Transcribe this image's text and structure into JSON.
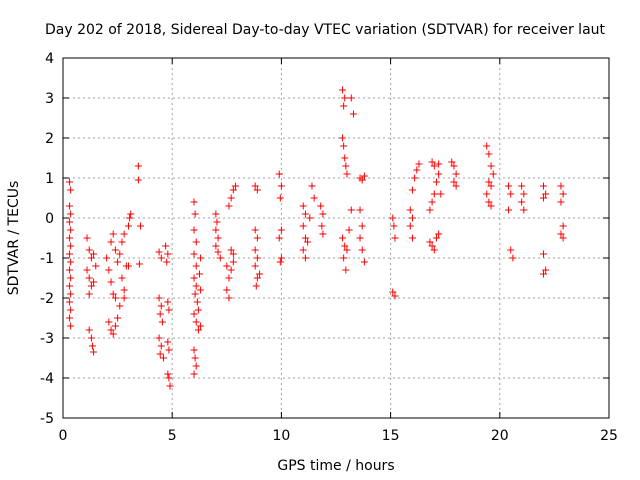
{
  "chart_data": {
    "type": "scatter",
    "title": "Day 202 of 2018, Sidereal Day-to-day VTEC variation (SDTVAR) for receiver laut",
    "xlabel": "GPS time / hours",
    "ylabel": "SDTVAR / TECUs",
    "xlim": [
      0,
      25
    ],
    "ylim": [
      -5,
      4
    ],
    "xticks": [
      "0",
      "5",
      "10",
      "15",
      "20",
      "25"
    ],
    "yticks": [
      "-5",
      "-4",
      "-3",
      "-2",
      "-1",
      "0",
      "1",
      "2",
      "3",
      "4"
    ],
    "grid": true,
    "marker": "+",
    "color": "#ff0000",
    "series": [
      {
        "name": "SDTVAR",
        "points": [
          [
            0.3,
            0.9
          ],
          [
            0.35,
            0.7
          ],
          [
            0.3,
            0.3
          ],
          [
            0.35,
            0.1
          ],
          [
            0.3,
            -0.1
          ],
          [
            0.35,
            -0.3
          ],
          [
            0.3,
            -0.5
          ],
          [
            0.35,
            -0.7
          ],
          [
            0.3,
            -0.9
          ],
          [
            0.35,
            -1.1
          ],
          [
            0.3,
            -1.3
          ],
          [
            0.35,
            -1.5
          ],
          [
            0.3,
            -1.7
          ],
          [
            0.35,
            -1.9
          ],
          [
            0.3,
            -2.1
          ],
          [
            0.35,
            -2.3
          ],
          [
            0.3,
            -2.5
          ],
          [
            0.35,
            -2.7
          ],
          [
            1.1,
            -0.5
          ],
          [
            1.2,
            -0.8
          ],
          [
            1.3,
            -1.0
          ],
          [
            1.1,
            -1.3
          ],
          [
            1.2,
            -1.5
          ],
          [
            1.3,
            -1.7
          ],
          [
            1.2,
            -1.9
          ],
          [
            1.4,
            -1.6
          ],
          [
            1.5,
            -1.2
          ],
          [
            1.4,
            -0.9
          ],
          [
            1.2,
            -2.8
          ],
          [
            1.3,
            -3.0
          ],
          [
            1.35,
            -3.2
          ],
          [
            1.4,
            -3.35
          ],
          [
            2.0,
            -1.0
          ],
          [
            2.1,
            -1.3
          ],
          [
            2.2,
            -1.6
          ],
          [
            2.3,
            -1.9
          ],
          [
            2.4,
            -2.0
          ],
          [
            2.1,
            -2.6
          ],
          [
            2.2,
            -2.8
          ],
          [
            2.3,
            -2.9
          ],
          [
            2.4,
            -2.7
          ],
          [
            2.5,
            -2.5
          ],
          [
            2.6,
            -2.2
          ],
          [
            2.2,
            -0.6
          ],
          [
            2.3,
            -0.4
          ],
          [
            2.4,
            -0.8
          ],
          [
            2.5,
            -1.1
          ],
          [
            2.6,
            -0.9
          ],
          [
            2.7,
            -0.6
          ],
          [
            2.8,
            -0.4
          ],
          [
            2.7,
            -1.5
          ],
          [
            2.8,
            -1.8
          ],
          [
            2.9,
            -1.2
          ],
          [
            2.8,
            -2.0
          ],
          [
            3.0,
            -0.2
          ],
          [
            3.05,
            0.0
          ],
          [
            3.1,
            0.1
          ],
          [
            3.0,
            -1.2
          ],
          [
            3.45,
            1.3
          ],
          [
            3.45,
            0.95
          ],
          [
            3.55,
            -0.2
          ],
          [
            3.5,
            -1.15
          ],
          [
            4.4,
            -0.85
          ],
          [
            4.5,
            -1.0
          ],
          [
            4.4,
            -2.0
          ],
          [
            4.5,
            -2.2
          ],
          [
            4.45,
            -2.4
          ],
          [
            4.55,
            -2.6
          ],
          [
            4.4,
            -3.0
          ],
          [
            4.5,
            -3.2
          ],
          [
            4.45,
            -3.4
          ],
          [
            4.6,
            -3.5
          ],
          [
            4.7,
            -0.7
          ],
          [
            4.8,
            -0.9
          ],
          [
            4.75,
            -1.1
          ],
          [
            4.8,
            -2.1
          ],
          [
            4.85,
            -2.3
          ],
          [
            4.8,
            -3.1
          ],
          [
            4.85,
            -3.3
          ],
          [
            4.8,
            -3.9
          ],
          [
            4.85,
            -4.0
          ],
          [
            4.9,
            -4.2
          ],
          [
            6.0,
            0.4
          ],
          [
            6.05,
            0.1
          ],
          [
            6.0,
            -0.3
          ],
          [
            6.1,
            -0.6
          ],
          [
            6.0,
            -0.9
          ],
          [
            6.1,
            -1.2
          ],
          [
            6.0,
            -1.5
          ],
          [
            6.1,
            -1.7
          ],
          [
            6.05,
            -1.9
          ],
          [
            6.15,
            -2.1
          ],
          [
            6.0,
            -2.4
          ],
          [
            6.1,
            -2.6
          ],
          [
            6.2,
            -2.8
          ],
          [
            6.3,
            -2.7
          ],
          [
            6.2,
            -2.3
          ],
          [
            6.3,
            -1.8
          ],
          [
            6.25,
            -1.4
          ],
          [
            6.3,
            -1.0
          ],
          [
            6.0,
            -3.3
          ],
          [
            6.05,
            -3.5
          ],
          [
            6.1,
            -3.7
          ],
          [
            6.0,
            -3.9
          ],
          [
            7.0,
            0.1
          ],
          [
            7.05,
            -0.1
          ],
          [
            7.0,
            -0.3
          ],
          [
            7.1,
            -0.5
          ],
          [
            7.0,
            -0.7
          ],
          [
            7.1,
            -0.85
          ],
          [
            7.2,
            -1.0
          ],
          [
            7.5,
            -1.2
          ],
          [
            7.6,
            -1.5
          ],
          [
            7.5,
            -1.8
          ],
          [
            7.6,
            -2.0
          ],
          [
            7.7,
            -1.3
          ],
          [
            7.8,
            -1.1
          ],
          [
            7.7,
            -0.8
          ],
          [
            7.8,
            -0.9
          ],
          [
            7.6,
            0.3
          ],
          [
            7.7,
            0.5
          ],
          [
            7.8,
            0.7
          ],
          [
            7.9,
            0.8
          ],
          [
            8.8,
            0.8
          ],
          [
            8.9,
            0.7
          ],
          [
            8.8,
            -0.3
          ],
          [
            8.9,
            -0.5
          ],
          [
            8.8,
            -0.8
          ],
          [
            8.9,
            -1.0
          ],
          [
            8.8,
            -1.2
          ],
          [
            8.9,
            -1.5
          ],
          [
            8.85,
            -1.7
          ],
          [
            9.0,
            -1.4
          ],
          [
            9.9,
            1.1
          ],
          [
            10.0,
            0.8
          ],
          [
            9.95,
            0.5
          ],
          [
            10.0,
            -0.3
          ],
          [
            9.9,
            -0.5
          ],
          [
            10.0,
            -1.0
          ],
          [
            9.95,
            -1.1
          ],
          [
            11.0,
            0.3
          ],
          [
            11.1,
            0.1
          ],
          [
            11.0,
            -0.2
          ],
          [
            11.1,
            -0.5
          ],
          [
            11.0,
            -0.8
          ],
          [
            11.1,
            -1.0
          ],
          [
            11.2,
            -0.6
          ],
          [
            11.3,
            0.0
          ],
          [
            11.4,
            0.8
          ],
          [
            11.5,
            0.5
          ],
          [
            11.8,
            0.3
          ],
          [
            11.9,
            0.1
          ],
          [
            11.85,
            -0.2
          ],
          [
            11.9,
            -0.4
          ],
          [
            12.8,
            3.2
          ],
          [
            12.9,
            3.0
          ],
          [
            12.85,
            2.8
          ],
          [
            13.2,
            3.0
          ],
          [
            13.3,
            2.6
          ],
          [
            12.8,
            2.0
          ],
          [
            12.85,
            1.8
          ],
          [
            12.9,
            1.5
          ],
          [
            12.95,
            1.3
          ],
          [
            13.0,
            1.1
          ],
          [
            12.8,
            -0.5
          ],
          [
            12.9,
            -0.7
          ],
          [
            12.85,
            -1.0
          ],
          [
            12.95,
            -1.3
          ],
          [
            13.0,
            -0.8
          ],
          [
            13.1,
            -0.3
          ],
          [
            13.2,
            0.2
          ],
          [
            13.6,
            1.0
          ],
          [
            13.7,
            0.95
          ],
          [
            13.8,
            1.05
          ],
          [
            13.6,
            0.2
          ],
          [
            13.7,
            -0.2
          ],
          [
            13.6,
            -0.5
          ],
          [
            13.7,
            -0.8
          ],
          [
            13.8,
            -1.1
          ],
          [
            15.1,
            0.0
          ],
          [
            15.15,
            -0.2
          ],
          [
            15.2,
            -0.5
          ],
          [
            15.1,
            -1.85
          ],
          [
            15.2,
            -1.95
          ],
          [
            15.9,
            0.2
          ],
          [
            16.0,
            0.0
          ],
          [
            15.9,
            -0.2
          ],
          [
            16.0,
            -0.5
          ],
          [
            16.0,
            0.7
          ],
          [
            16.1,
            1.0
          ],
          [
            16.2,
            1.2
          ],
          [
            16.3,
            1.35
          ],
          [
            16.8,
            0.2
          ],
          [
            16.9,
            0.4
          ],
          [
            17.0,
            0.6
          ],
          [
            17.1,
            0.9
          ],
          [
            17.2,
            1.1
          ],
          [
            17.0,
            1.3
          ],
          [
            16.9,
            1.4
          ],
          [
            17.2,
            1.35
          ],
          [
            16.8,
            -0.6
          ],
          [
            16.9,
            -0.7
          ],
          [
            17.0,
            -0.8
          ],
          [
            17.1,
            -0.5
          ],
          [
            17.2,
            -0.4
          ],
          [
            17.3,
            0.6
          ],
          [
            17.8,
            1.4
          ],
          [
            17.9,
            1.3
          ],
          [
            18.0,
            1.1
          ],
          [
            17.9,
            0.9
          ],
          [
            18.0,
            0.8
          ],
          [
            19.4,
            1.8
          ],
          [
            19.5,
            1.6
          ],
          [
            19.6,
            1.3
          ],
          [
            19.7,
            1.1
          ],
          [
            19.5,
            0.9
          ],
          [
            19.6,
            0.8
          ],
          [
            19.4,
            0.6
          ],
          [
            19.5,
            0.4
          ],
          [
            19.6,
            0.3
          ],
          [
            20.4,
            0.8
          ],
          [
            20.5,
            0.6
          ],
          [
            20.4,
            0.2
          ],
          [
            20.5,
            -0.8
          ],
          [
            20.6,
            -1.0
          ],
          [
            21.0,
            0.8
          ],
          [
            21.1,
            0.6
          ],
          [
            21.0,
            0.4
          ],
          [
            21.1,
            0.2
          ],
          [
            22.0,
            0.8
          ],
          [
            22.1,
            0.6
          ],
          [
            22.0,
            0.5
          ],
          [
            22.0,
            -0.9
          ],
          [
            22.1,
            -1.3
          ],
          [
            22.0,
            -1.4
          ],
          [
            22.8,
            0.8
          ],
          [
            22.9,
            0.6
          ],
          [
            22.8,
            0.4
          ],
          [
            22.9,
            -0.2
          ],
          [
            22.8,
            -0.4
          ],
          [
            22.9,
            -0.5
          ]
        ]
      }
    ]
  }
}
